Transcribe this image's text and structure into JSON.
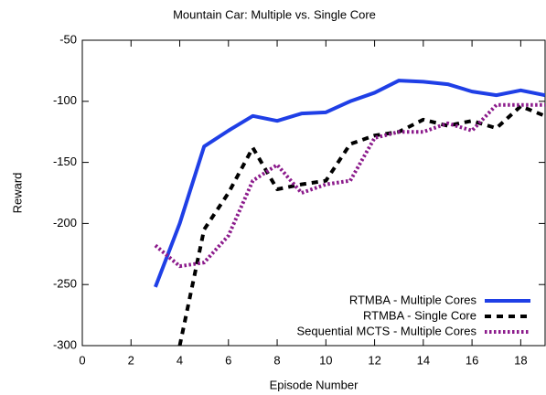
{
  "chart_data": {
    "type": "line",
    "title": "Mountain Car: Multiple vs. Single Core",
    "x_label": "Episode Number",
    "y_label": "Reward",
    "x": [
      3,
      4,
      5,
      6,
      7,
      8,
      9,
      10,
      11,
      12,
      13,
      14,
      15,
      16,
      17,
      18,
      19
    ],
    "series": [
      {
        "name": "RTMBA - Multiple Cores",
        "color": "#1f3fe6",
        "style": "solid",
        "values": [
          -252,
          -200,
          -137,
          -124,
          -112,
          -116,
          -110,
          -109,
          -100,
          -93,
          -83,
          -84,
          -86,
          -92,
          -95,
          -91,
          -95
        ]
      },
      {
        "name": "RTMBA - Single Core",
        "color": "#000000",
        "style": "dashed",
        "values": [
          null,
          -300,
          -205,
          -175,
          -138,
          -172,
          -168,
          -165,
          -135,
          -128,
          -125,
          -115,
          -120,
          -116,
          -122,
          -104,
          -112
        ]
      },
      {
        "name": "Sequential MCTS - Multiple Cores",
        "color": "#8b1a8b",
        "style": "dotted",
        "values": [
          -218,
          -235,
          -232,
          -210,
          -165,
          -152,
          -175,
          -168,
          -165,
          -130,
          -125,
          -125,
          -118,
          -124,
          -103,
          -103,
          -103
        ]
      }
    ],
    "xlim": [
      0,
      19
    ],
    "xticks": [
      0,
      2,
      4,
      6,
      8,
      10,
      12,
      14,
      16,
      18
    ],
    "ylim": [
      -300,
      -50
    ],
    "yticks": [
      -300,
      -250,
      -200,
      -150,
      -100,
      -50
    ],
    "legend": "lower right",
    "grid": false
  }
}
